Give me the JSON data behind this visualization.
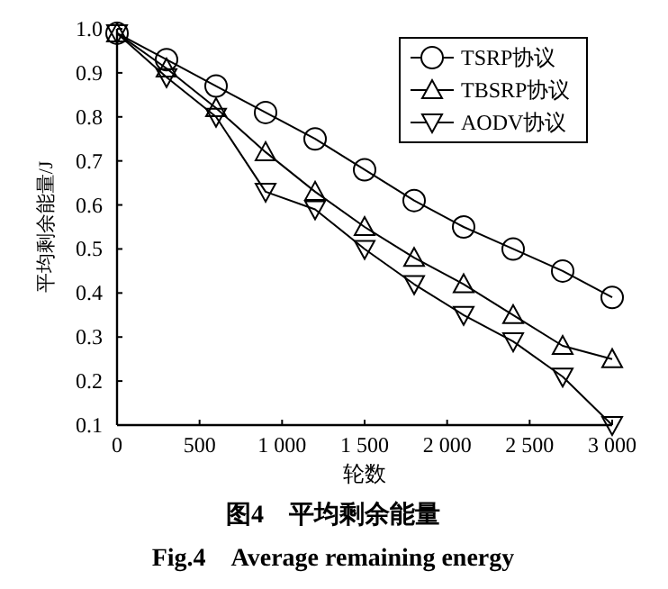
{
  "chart_data": {
    "type": "line",
    "title": "图4　平均剩余能量",
    "subtitle": "Fig.4　Average remaining energy",
    "xlabel": "轮数",
    "ylabel": "平均剩余能量/J",
    "x": [
      0,
      300,
      600,
      900,
      1200,
      1500,
      1800,
      2100,
      2400,
      2700,
      3000
    ],
    "series": [
      {
        "name": "TSRP协议",
        "color": "#000000",
        "marker": "circle",
        "values": [
          0.99,
          0.93,
          0.87,
          0.81,
          0.75,
          0.68,
          0.61,
          0.55,
          0.5,
          0.45,
          0.39
        ]
      },
      {
        "name": "TBSRP协议",
        "color": "#000000",
        "marker": "triangle",
        "values": [
          0.99,
          0.91,
          0.82,
          0.72,
          0.63,
          0.55,
          0.48,
          0.42,
          0.35,
          0.28,
          0.25
        ]
      },
      {
        "name": "AODV协议",
        "color": "#000000",
        "marker": "triangle-down",
        "values": [
          0.99,
          0.89,
          0.8,
          0.63,
          0.59,
          0.5,
          0.42,
          0.35,
          0.29,
          0.21,
          0.1
        ]
      }
    ],
    "xlim": [
      0,
      3000
    ],
    "ylim": [
      0.1,
      1.0
    ],
    "xticks": [
      0,
      500,
      {
        "value": 1000,
        "label": "1 000"
      },
      {
        "value": 1500,
        "label": "1 500"
      },
      {
        "value": 2000,
        "label": "2 000"
      },
      {
        "value": 2500,
        "label": "2 500"
      },
      {
        "value": 3000,
        "label": "3 000"
      }
    ],
    "yticks": [
      {
        "value": 0.1,
        "label": "0.1"
      },
      {
        "value": 0.2,
        "label": "0.2"
      },
      {
        "value": 0.3,
        "label": "0.3"
      },
      {
        "value": 0.4,
        "label": "0.4"
      },
      {
        "value": 0.5,
        "label": "0.5"
      },
      {
        "value": 0.6,
        "label": "0.6"
      },
      {
        "value": 0.7,
        "label": "0.7"
      },
      {
        "value": 0.8,
        "label": "0.8"
      },
      {
        "value": 0.9,
        "label": "0.9"
      },
      {
        "value": 1.0,
        "label": "1.0"
      }
    ],
    "legend": "top right",
    "line_style": "solid",
    "grid": false
  }
}
